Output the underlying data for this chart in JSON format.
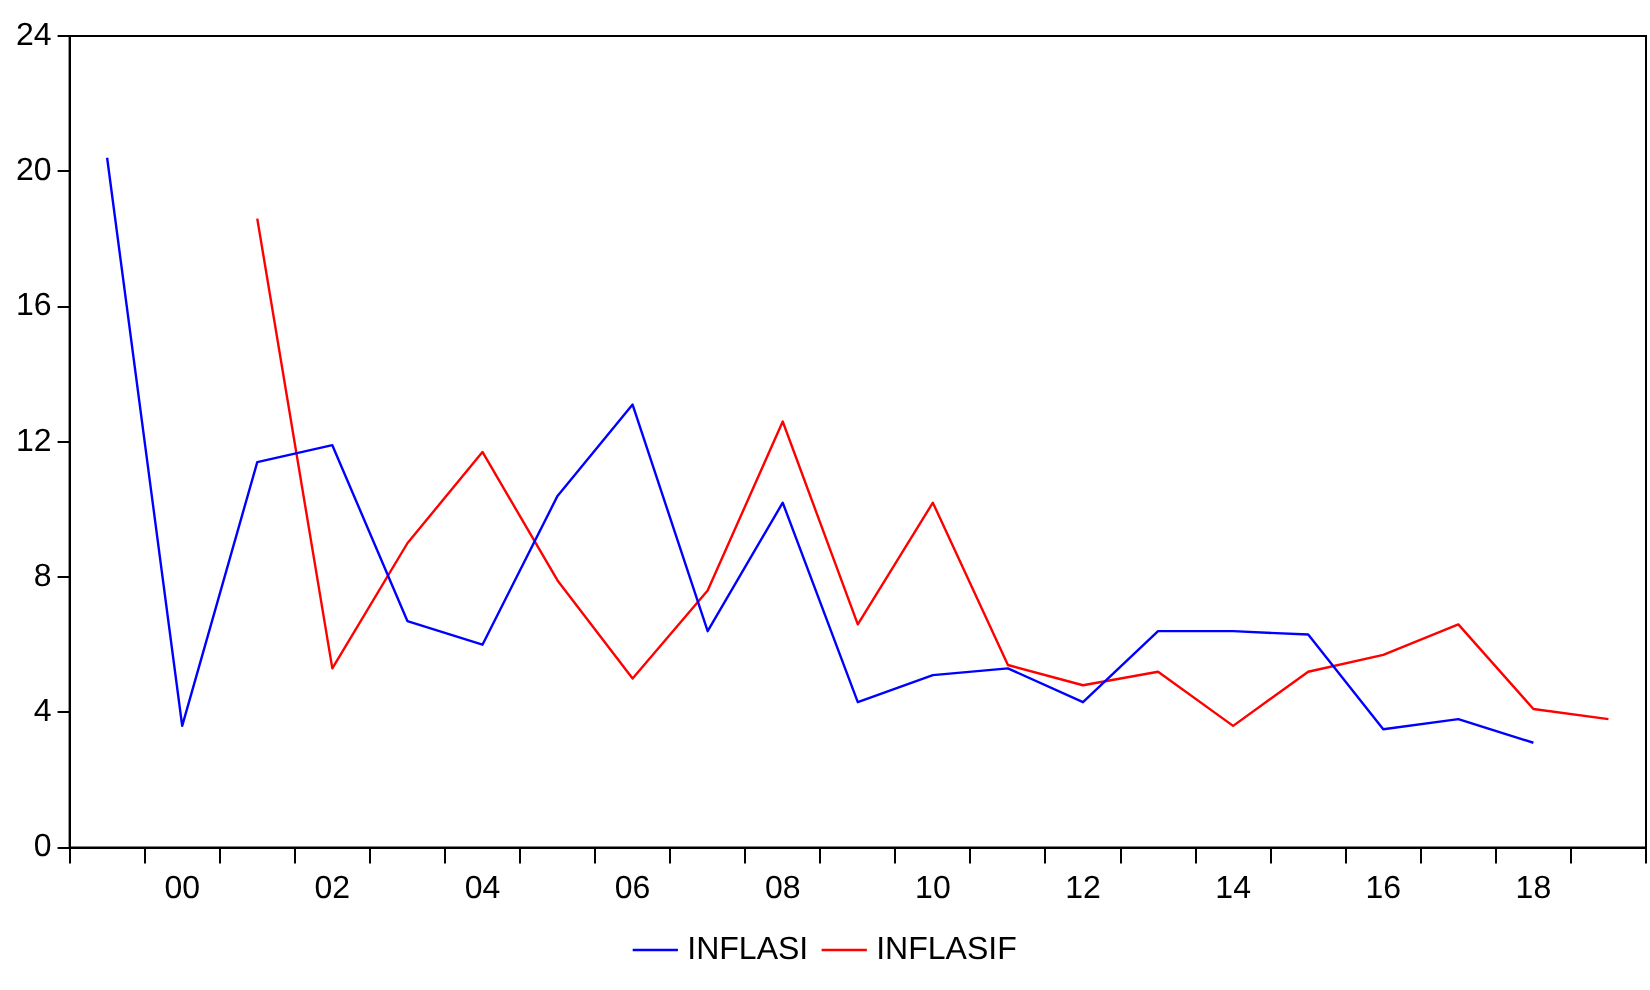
{
  "chart_data": {
    "type": "line",
    "categories": [
      null,
      "00",
      null,
      "02",
      null,
      "04",
      null,
      "06",
      null,
      "08",
      null,
      "10",
      null,
      "12",
      null,
      "14",
      null,
      "16",
      null,
      "18",
      null
    ],
    "series": [
      {
        "name": "INFLASI",
        "color": "#0000ff",
        "values": [
          20.4,
          3.6,
          11.4,
          11.9,
          6.7,
          6.0,
          10.4,
          13.1,
          6.4,
          10.2,
          4.3,
          5.1,
          5.3,
          4.3,
          6.4,
          6.4,
          6.3,
          3.5,
          3.8,
          3.1,
          null
        ]
      },
      {
        "name": "INFLASIF",
        "color": "#ff0000",
        "values": [
          null,
          null,
          18.6,
          5.3,
          9.0,
          11.7,
          7.9,
          5.0,
          7.6,
          12.6,
          6.6,
          10.2,
          5.4,
          4.8,
          5.2,
          3.6,
          5.2,
          5.7,
          6.6,
          4.1,
          3.8
        ]
      }
    ],
    "ylim": [
      0,
      24
    ],
    "yticks": [
      0,
      4,
      8,
      12,
      16,
      20,
      24
    ],
    "grid": false,
    "legend": "bottom",
    "marker": "none",
    "line_style": "solid"
  }
}
